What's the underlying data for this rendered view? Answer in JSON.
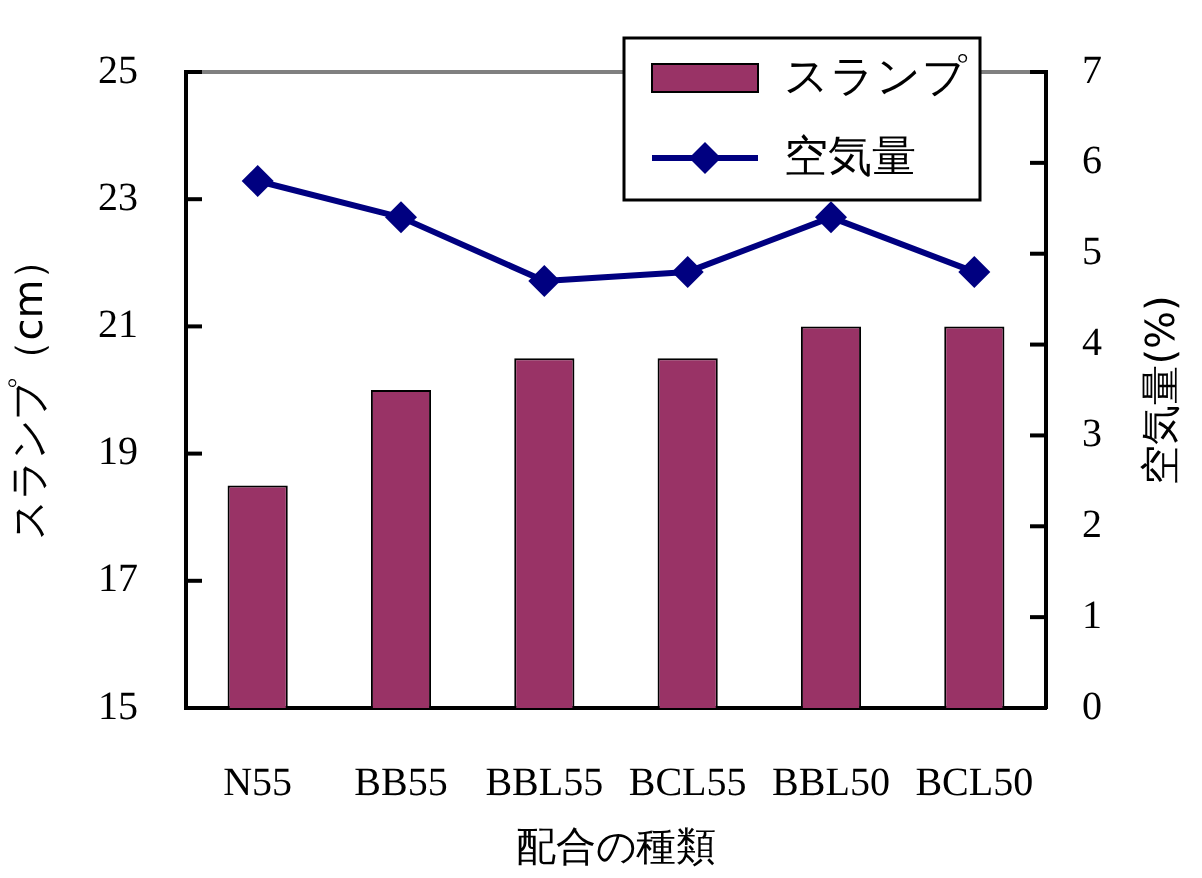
{
  "chart_data": {
    "type": "bar",
    "xlabel": "配合の種類",
    "ylabel": "スランプ（cm）",
    "y2label": "空気量(%)",
    "categories": [
      "N55",
      "BB55",
      "BBL55",
      "BCL55",
      "BBL50",
      "BCL50"
    ],
    "series": [
      {
        "name": "スランプ",
        "color": "#993366",
        "values": [
          18.5,
          20,
          20.5,
          20.5,
          21,
          21
        ]
      },
      {
        "name": "空気量",
        "type": "line",
        "axis": "y2",
        "color": "#000080",
        "values": [
          5.8,
          5.4,
          4.7,
          4.8,
          5.4,
          4.8
        ]
      }
    ],
    "ylim": [
      15,
      25
    ],
    "yticks": [
      15,
      17,
      19,
      21,
      23,
      25
    ],
    "y2lim": [
      0,
      7
    ],
    "y2ticks": [
      0,
      1,
      2,
      3,
      4,
      5,
      6,
      7
    ],
    "marker": "diamond",
    "legend": "top right"
  }
}
